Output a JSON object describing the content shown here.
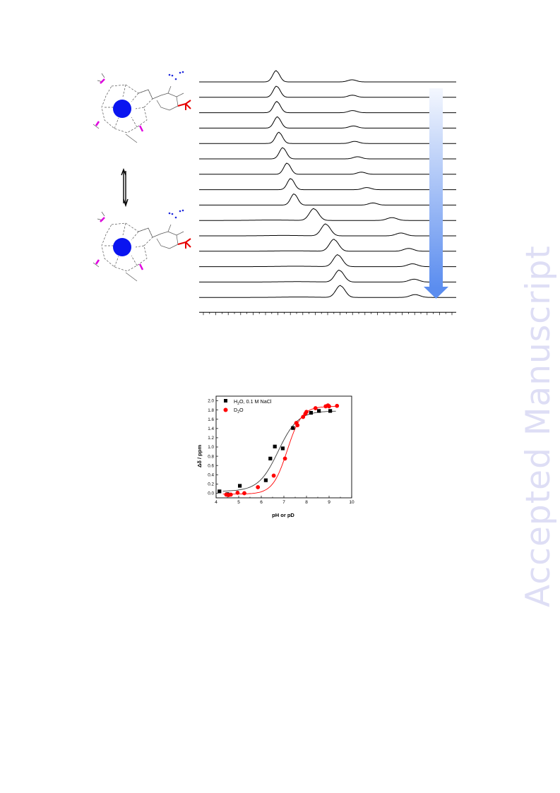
{
  "page": {
    "watermark": "Accepted Manuscript"
  },
  "figure_top": {
    "description_colors": {
      "metal_ion": "#0a14f0",
      "tert_butyl": "#e60000",
      "side_arms": "#e000e0",
      "nitrogen_group": "#1e28dc",
      "arrow_gradient_start": "#f4f7fe",
      "arrow_gradient_end": "#5b8def"
    },
    "spectra": {
      "count": 15,
      "peak1_ppm_index": [
        0.3,
        0.302,
        0.303,
        0.305,
        0.311,
        0.326,
        0.343,
        0.357,
        0.37,
        0.447,
        0.493,
        0.525,
        0.54,
        0.546,
        0.55
      ],
      "peak2_ppm_index": [
        0.595,
        0.596,
        0.597,
        0.6,
        0.605,
        0.616,
        0.631,
        0.652,
        0.676,
        0.75,
        0.785,
        0.815,
        0.83,
        0.836,
        0.84
      ]
    }
  },
  "chart_data": {
    "type": "scatter",
    "title": "",
    "xlabel": "pH or pD",
    "ylabel": "Δδ / ppm",
    "xlim": [
      4,
      10
    ],
    "ylim": [
      -0.1,
      2.1
    ],
    "x_ticks": [
      "4",
      "5",
      "6",
      "7",
      "8",
      "9",
      "10"
    ],
    "y_ticks": [
      "0.0",
      "0.2",
      "0.4",
      "0.6",
      "0.8",
      "1.0",
      "1.2",
      "1.4",
      "1.6",
      "1.8",
      "2.0"
    ],
    "legend_position": "top-left",
    "series": [
      {
        "name": "H2O, 0.1 M NaCl",
        "legend_main": "H",
        "legend_sub": "2",
        "legend_rest": "O, 0.1 M NaCl",
        "marker": "square",
        "color": "#000000",
        "fit_color": "#3a3a3a",
        "fit": {
          "pKa": 6.75,
          "low": 0.04,
          "high": 1.78,
          "n": 1.0
        },
        "points": [
          [
            4.15,
            0.04
          ],
          [
            4.5,
            -0.02
          ],
          [
            5.05,
            0.16
          ],
          [
            6.2,
            0.28
          ],
          [
            6.4,
            0.75
          ],
          [
            6.6,
            1.01
          ],
          [
            6.95,
            0.97
          ],
          [
            7.4,
            1.41
          ],
          [
            8.2,
            1.74
          ],
          [
            8.55,
            1.78
          ],
          [
            9.05,
            1.78
          ]
        ]
      },
      {
        "name": "D2O",
        "legend_main": "D",
        "legend_sub": "2",
        "legend_rest": "O",
        "marker": "circle",
        "color": "#ff0000",
        "fit_color": "#ff0000",
        "fit": {
          "pKa": 7.15,
          "low": -0.02,
          "high": 1.88,
          "n": 1.35
        },
        "points": [
          [
            4.45,
            -0.03
          ],
          [
            4.55,
            -0.04
          ],
          [
            4.65,
            -0.03
          ],
          [
            4.95,
            0.01
          ],
          [
            5.25,
            0.0
          ],
          [
            5.85,
            0.13
          ],
          [
            6.55,
            0.38
          ],
          [
            7.05,
            0.75
          ],
          [
            7.55,
            1.52
          ],
          [
            7.6,
            1.47
          ],
          [
            7.85,
            1.65
          ],
          [
            7.95,
            1.72
          ],
          [
            8.0,
            1.76
          ],
          [
            8.4,
            1.84
          ],
          [
            8.85,
            1.88
          ],
          [
            8.95,
            1.9
          ],
          [
            9.0,
            1.88
          ],
          [
            9.35,
            1.89
          ]
        ]
      }
    ]
  }
}
